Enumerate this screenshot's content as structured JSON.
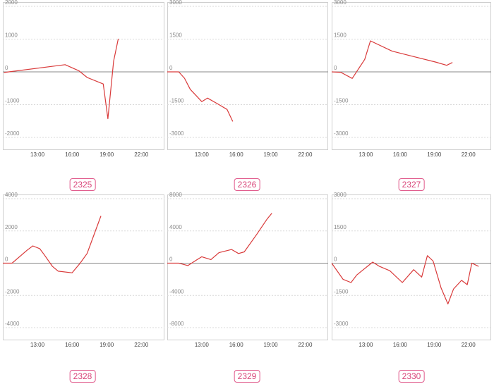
{
  "colors": {
    "line": "#d93a3a",
    "label_border": "#e0588a",
    "label_text": "#d9467a",
    "zero_line": "#888888"
  },
  "chart_data": [
    {
      "type": "line",
      "label": "2325",
      "yticks": [
        "2000",
        "1000",
        "0",
        "-1000",
        "-2000"
      ],
      "ylim": [
        -2000,
        2000
      ],
      "xticks": [
        "13:00",
        "16:00",
        "19:00",
        "22:00"
      ],
      "xlim": [
        10.0,
        24.0
      ],
      "points": [
        [
          10.1,
          -20
        ],
        [
          15.4,
          220
        ],
        [
          16.6,
          30
        ],
        [
          17.3,
          -170
        ],
        [
          18.7,
          -370
        ],
        [
          19.1,
          -1430
        ],
        [
          19.6,
          330
        ],
        [
          20.0,
          1010
        ]
      ]
    },
    {
      "type": "line",
      "label": "2326",
      "yticks": [
        "3000",
        "1500",
        "0",
        "-1500",
        "-3000"
      ],
      "ylim": [
        -3000,
        3000
      ],
      "xticks": [
        "13:00",
        "16:00",
        "19:00",
        "22:00"
      ],
      "xlim": [
        10.0,
        24.0
      ],
      "points": [
        [
          10.0,
          0
        ],
        [
          11.0,
          0
        ],
        [
          11.5,
          -290
        ],
        [
          12.0,
          -800
        ],
        [
          13.0,
          -1360
        ],
        [
          13.5,
          -1200
        ],
        [
          14.5,
          -1500
        ],
        [
          15.2,
          -1720
        ],
        [
          15.7,
          -2270
        ]
      ]
    },
    {
      "type": "line",
      "label": "2327",
      "yticks": [
        "3000",
        "1500",
        "0",
        "-1500",
        "-3000"
      ],
      "ylim": [
        -3000,
        3000
      ],
      "xticks": [
        "13:00",
        "16:00",
        "19:00",
        "22:00"
      ],
      "xlim": [
        10.0,
        24.0
      ],
      "points": [
        [
          10.0,
          0
        ],
        [
          10.8,
          -20
        ],
        [
          11.8,
          -300
        ],
        [
          12.9,
          570
        ],
        [
          13.4,
          1420
        ],
        [
          15.3,
          950
        ],
        [
          17.2,
          700
        ],
        [
          19.1,
          450
        ],
        [
          20.1,
          300
        ],
        [
          20.6,
          430
        ]
      ]
    },
    {
      "type": "line",
      "label": "2328",
      "yticks": [
        "4000",
        "2000",
        "0",
        "-2000",
        "-4000"
      ],
      "ylim": [
        -4000,
        4000
      ],
      "xticks": [
        "13:00",
        "16:00",
        "19:00",
        "22:00"
      ],
      "xlim": [
        10.0,
        24.0
      ],
      "points": [
        [
          10.0,
          0
        ],
        [
          10.8,
          0
        ],
        [
          12.1,
          800
        ],
        [
          12.6,
          1070
        ],
        [
          13.2,
          900
        ],
        [
          13.6,
          510
        ],
        [
          14.3,
          -200
        ],
        [
          14.8,
          -500
        ],
        [
          16.0,
          -600
        ],
        [
          16.7,
          0
        ],
        [
          17.3,
          600
        ],
        [
          18.5,
          2930
        ]
      ]
    },
    {
      "type": "line",
      "label": "2329",
      "yticks": [
        "8000",
        "4000",
        "0",
        "-4000",
        "-8000"
      ],
      "ylim": [
        -8000,
        8000
      ],
      "xticks": [
        "13:00",
        "16:00",
        "19:00",
        "22:00"
      ],
      "xlim": [
        10.0,
        24.0
      ],
      "points": [
        [
          10.0,
          0
        ],
        [
          11.0,
          0
        ],
        [
          11.8,
          -300
        ],
        [
          12.5,
          350
        ],
        [
          13.0,
          800
        ],
        [
          13.8,
          450
        ],
        [
          14.5,
          1300
        ],
        [
          15.6,
          1700
        ],
        [
          16.2,
          1200
        ],
        [
          16.7,
          1400
        ],
        [
          17.8,
          3600
        ],
        [
          18.7,
          5500
        ],
        [
          19.1,
          6200
        ]
      ]
    },
    {
      "type": "line",
      "label": "2330",
      "yticks": [
        "3000",
        "1500",
        "0",
        "-1500",
        "-3000"
      ],
      "ylim": [
        -3000,
        3000
      ],
      "xticks": [
        "13:00",
        "16:00",
        "19:00",
        "22:00"
      ],
      "xlim": [
        10.0,
        24.0
      ],
      "points": [
        [
          10.0,
          0
        ],
        [
          11.0,
          -750
        ],
        [
          11.7,
          -900
        ],
        [
          12.2,
          -550
        ],
        [
          13.6,
          50
        ],
        [
          14.2,
          -150
        ],
        [
          15.1,
          -350
        ],
        [
          16.2,
          -900
        ],
        [
          17.2,
          -300
        ],
        [
          17.9,
          -650
        ],
        [
          18.4,
          350
        ],
        [
          18.9,
          100
        ],
        [
          19.6,
          -1150
        ],
        [
          20.2,
          -1900
        ],
        [
          20.7,
          -1200
        ],
        [
          21.4,
          -800
        ],
        [
          21.9,
          -1000
        ],
        [
          22.3,
          0
        ],
        [
          22.9,
          -150
        ]
      ]
    }
  ]
}
